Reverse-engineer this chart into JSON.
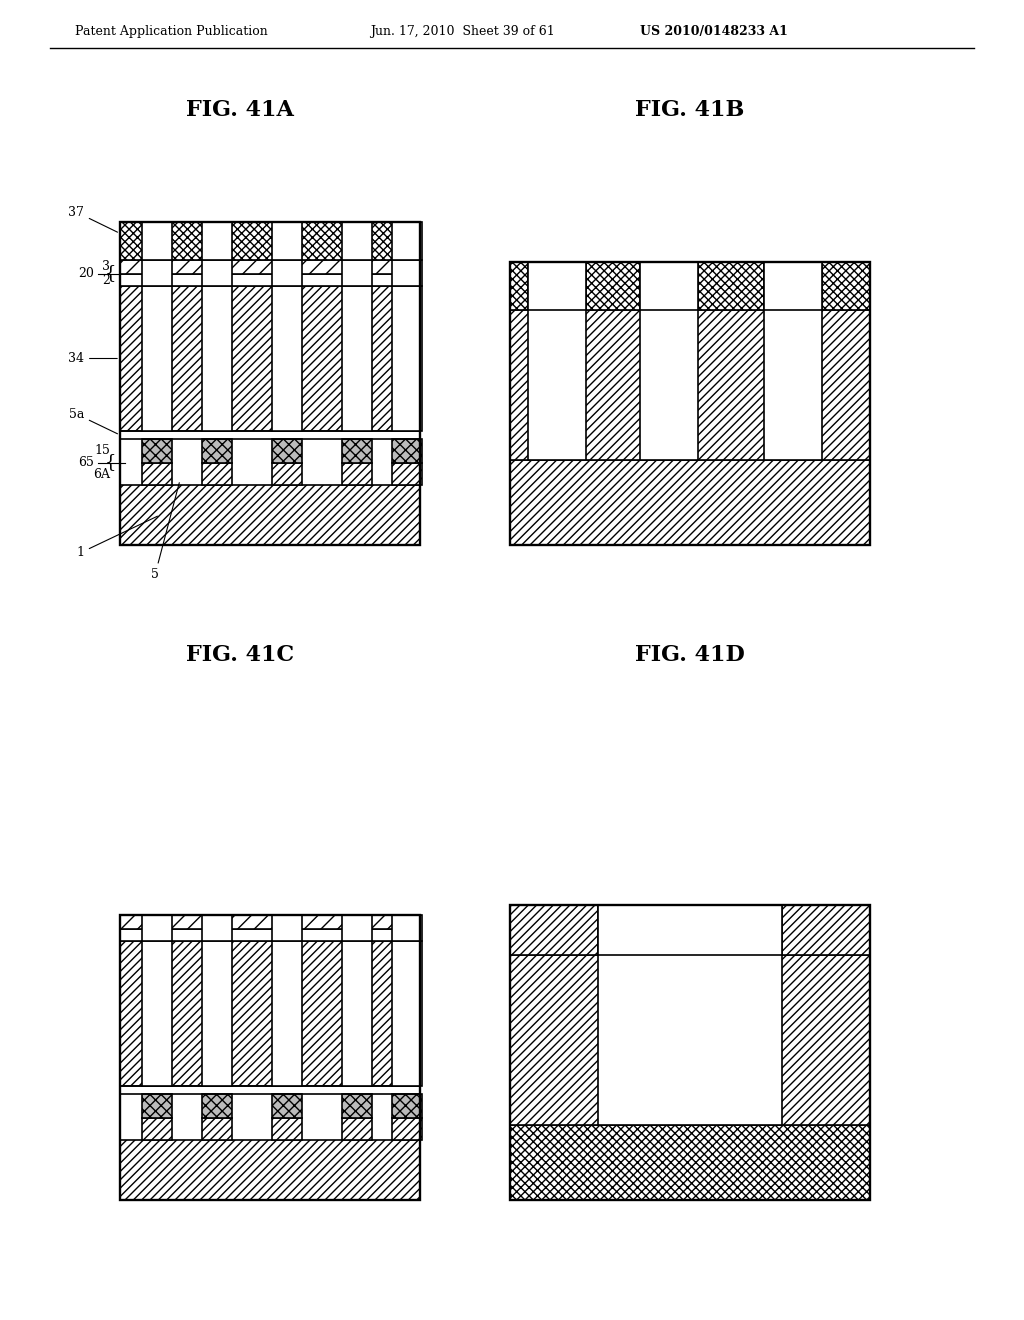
{
  "title": "Patent Application Publication",
  "date": "Jun. 17, 2010",
  "sheet": "Sheet 39 of 61",
  "patent": "US 2010/0148233 A1",
  "fig_labels": [
    "FIG. 41A",
    "FIG. 41B",
    "FIG. 41C",
    "FIG. 41D"
  ],
  "background_color": "#ffffff",
  "line_color": "#000000"
}
